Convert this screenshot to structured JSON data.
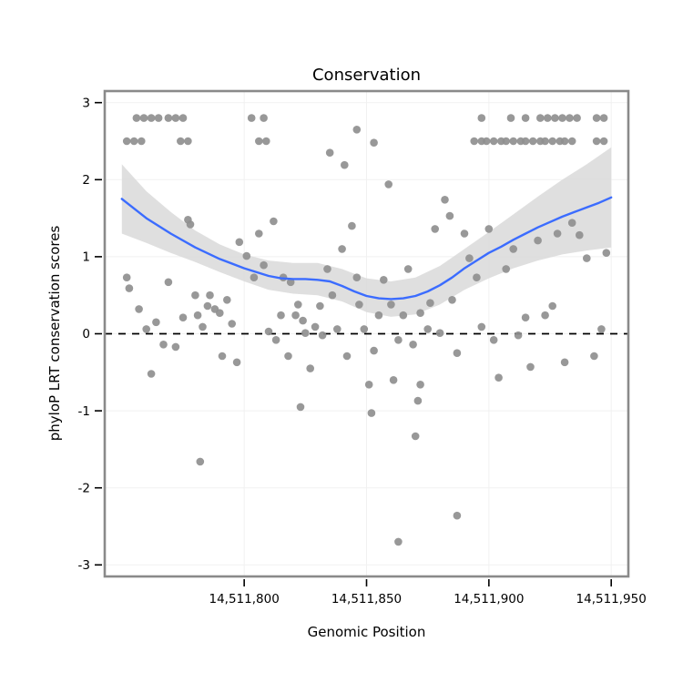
{
  "chart_data": {
    "type": "scatter",
    "title": "Conservation",
    "xlabel": "Genomic Position",
    "ylabel": "phyloP LRT conservation scores",
    "xlim": [
      14511743,
      14511957
    ],
    "ylim": [
      -3.15,
      3.15
    ],
    "grid": "faint",
    "legend_position": "none",
    "x_ticks": [
      {
        "value": 14511800,
        "label": "14,511,800"
      },
      {
        "value": 14511850,
        "label": "14,511,850"
      },
      {
        "value": 14511900,
        "label": "14,511,900"
      },
      {
        "value": 14511950,
        "label": "14,511,950"
      }
    ],
    "y_ticks": [
      {
        "value": -3,
        "label": "-3"
      },
      {
        "value": -2,
        "label": "-2"
      },
      {
        "value": -1,
        "label": "-1"
      },
      {
        "value": 0,
        "label": "0"
      },
      {
        "value": 1,
        "label": "1"
      },
      {
        "value": 2,
        "label": "2"
      },
      {
        "value": 3,
        "label": "3"
      }
    ],
    "reference_line_y": 0,
    "colors": {
      "point": "#8f8f8f",
      "smooth_line": "#3b6cff",
      "band": "#d9d9d9",
      "dashed_line": "#000000",
      "panel_border": "#8a8a8a",
      "grid": "#f1f1f1",
      "tick": "#000000"
    },
    "points": [
      [
        14511752,
        0.73
      ],
      [
        14511753,
        0.59
      ],
      [
        14511757,
        0.32
      ],
      [
        14511760,
        0.06
      ],
      [
        14511762,
        -0.52
      ],
      [
        14511764,
        0.15
      ],
      [
        14511767,
        -0.14
      ],
      [
        14511769,
        0.67
      ],
      [
        14511772,
        -0.17
      ],
      [
        14511775,
        0.21
      ],
      [
        14511777,
        1.48
      ],
      [
        14511778,
        1.42
      ],
      [
        14511780,
        0.5
      ],
      [
        14511781,
        0.24
      ],
      [
        14511783,
        0.09
      ],
      [
        14511785,
        0.36
      ],
      [
        14511786,
        0.5
      ],
      [
        14511788,
        0.32
      ],
      [
        14511790,
        0.27
      ],
      [
        14511791,
        -0.29
      ],
      [
        14511782,
        -1.66
      ],
      [
        14511793,
        0.44
      ],
      [
        14511795,
        0.13
      ],
      [
        14511797,
        -0.37
      ],
      [
        14511798,
        1.19
      ],
      [
        14511801,
        1.01
      ],
      [
        14511804,
        0.73
      ],
      [
        14511806,
        1.3
      ],
      [
        14511808,
        0.89
      ],
      [
        14511810,
        0.03
      ],
      [
        14511812,
        1.46
      ],
      [
        14511813,
        -0.08
      ],
      [
        14511815,
        0.24
      ],
      [
        14511816,
        0.73
      ],
      [
        14511818,
        -0.29
      ],
      [
        14511819,
        0.67
      ],
      [
        14511821,
        0.24
      ],
      [
        14511822,
        0.38
      ],
      [
        14511824,
        0.17
      ],
      [
        14511825,
        0.01
      ],
      [
        14511827,
        -0.45
      ],
      [
        14511823,
        -0.95
      ],
      [
        14511829,
        0.09
      ],
      [
        14511831,
        0.36
      ],
      [
        14511832,
        -0.02
      ],
      [
        14511834,
        0.84
      ],
      [
        14511836,
        0.5
      ],
      [
        14511838,
        0.06
      ],
      [
        14511840,
        1.1
      ],
      [
        14511842,
        -0.29
      ],
      [
        14511844,
        1.4
      ],
      [
        14511846,
        0.73
      ],
      [
        14511847,
        0.38
      ],
      [
        14511849,
        0.06
      ],
      [
        14511851,
        -0.66
      ],
      [
        14511853,
        -0.22
      ],
      [
        14511855,
        0.24
      ],
      [
        14511857,
        0.7
      ],
      [
        14511860,
        0.38
      ],
      [
        14511861,
        -0.6
      ],
      [
        14511863,
        -0.08
      ],
      [
        14511865,
        0.24
      ],
      [
        14511867,
        0.84
      ],
      [
        14511869,
        -0.14
      ],
      [
        14511871,
        -0.87
      ],
      [
        14511852,
        -1.03
      ],
      [
        14511863,
        -2.7
      ],
      [
        14511870,
        -1.33
      ],
      [
        14511887,
        -2.36
      ],
      [
        14511872,
        -0.66
      ],
      [
        14511872,
        0.27
      ],
      [
        14511875,
        0.06
      ],
      [
        14511876,
        0.4
      ],
      [
        14511878,
        1.36
      ],
      [
        14511880,
        0.01
      ],
      [
        14511882,
        1.74
      ],
      [
        14511884,
        1.53
      ],
      [
        14511885,
        0.44
      ],
      [
        14511887,
        -0.25
      ],
      [
        14511890,
        1.3
      ],
      [
        14511892,
        0.98
      ],
      [
        14511895,
        0.73
      ],
      [
        14511897,
        0.09
      ],
      [
        14511900,
        1.36
      ],
      [
        14511902,
        -0.08
      ],
      [
        14511904,
        -0.57
      ],
      [
        14511907,
        0.84
      ],
      [
        14511910,
        1.1
      ],
      [
        14511912,
        -0.02
      ],
      [
        14511915,
        0.21
      ],
      [
        14511917,
        -0.43
      ],
      [
        14511920,
        1.21
      ],
      [
        14511923,
        0.24
      ],
      [
        14511926,
        0.36
      ],
      [
        14511928,
        1.3
      ],
      [
        14511931,
        -0.37
      ],
      [
        14511934,
        1.44
      ],
      [
        14511937,
        1.28
      ],
      [
        14511940,
        0.98
      ],
      [
        14511943,
        -0.29
      ],
      [
        14511946,
        0.06
      ],
      [
        14511948,
        1.05
      ],
      [
        14511756,
        2.8
      ],
      [
        14511759,
        2.8
      ],
      [
        14511762,
        2.8
      ],
      [
        14511765,
        2.8
      ],
      [
        14511769,
        2.8
      ],
      [
        14511772,
        2.8
      ],
      [
        14511775,
        2.8
      ],
      [
        14511803,
        2.8
      ],
      [
        14511808,
        2.8
      ],
      [
        14511897,
        2.8
      ],
      [
        14511909,
        2.8
      ],
      [
        14511915,
        2.8
      ],
      [
        14511921,
        2.8
      ],
      [
        14511924,
        2.8
      ],
      [
        14511927,
        2.8
      ],
      [
        14511930,
        2.8
      ],
      [
        14511933,
        2.8
      ],
      [
        14511936,
        2.8
      ],
      [
        14511944,
        2.8
      ],
      [
        14511947,
        2.8
      ],
      [
        14511752,
        2.5
      ],
      [
        14511755,
        2.5
      ],
      [
        14511758,
        2.5
      ],
      [
        14511774,
        2.5
      ],
      [
        14511777,
        2.5
      ],
      [
        14511806,
        2.5
      ],
      [
        14511809,
        2.5
      ],
      [
        14511894,
        2.5
      ],
      [
        14511897,
        2.5
      ],
      [
        14511899,
        2.5
      ],
      [
        14511902,
        2.5
      ],
      [
        14511905,
        2.5
      ],
      [
        14511907,
        2.5
      ],
      [
        14511910,
        2.5
      ],
      [
        14511913,
        2.5
      ],
      [
        14511915,
        2.5
      ],
      [
        14511918,
        2.5
      ],
      [
        14511921,
        2.5
      ],
      [
        14511923,
        2.5
      ],
      [
        14511926,
        2.5
      ],
      [
        14511929,
        2.5
      ],
      [
        14511931,
        2.5
      ],
      [
        14511934,
        2.5
      ],
      [
        14511944,
        2.5
      ],
      [
        14511947,
        2.5
      ],
      [
        14511846,
        2.65
      ],
      [
        14511835,
        2.35
      ],
      [
        14511853,
        2.48
      ],
      [
        14511841,
        2.19
      ],
      [
        14511859,
        1.94
      ]
    ],
    "smooth": [
      [
        14511750,
        1.75
      ],
      [
        14511760,
        1.5
      ],
      [
        14511770,
        1.3
      ],
      [
        14511780,
        1.12
      ],
      [
        14511790,
        0.97
      ],
      [
        14511800,
        0.85
      ],
      [
        14511810,
        0.75
      ],
      [
        14511815,
        0.72
      ],
      [
        14511820,
        0.71
      ],
      [
        14511825,
        0.71
      ],
      [
        14511830,
        0.7
      ],
      [
        14511835,
        0.68
      ],
      [
        14511840,
        0.62
      ],
      [
        14511845,
        0.55
      ],
      [
        14511850,
        0.49
      ],
      [
        14511855,
        0.46
      ],
      [
        14511860,
        0.45
      ],
      [
        14511865,
        0.46
      ],
      [
        14511870,
        0.49
      ],
      [
        14511875,
        0.55
      ],
      [
        14511880,
        0.63
      ],
      [
        14511885,
        0.73
      ],
      [
        14511890,
        0.85
      ],
      [
        14511895,
        0.95
      ],
      [
        14511900,
        1.05
      ],
      [
        14511905,
        1.13
      ],
      [
        14511910,
        1.22
      ],
      [
        14511915,
        1.3
      ],
      [
        14511920,
        1.38
      ],
      [
        14511925,
        1.45
      ],
      [
        14511930,
        1.52
      ],
      [
        14511935,
        1.58
      ],
      [
        14511940,
        1.64
      ],
      [
        14511945,
        1.7
      ],
      [
        14511950,
        1.77
      ]
    ],
    "band": [
      [
        14511750,
        1.3,
        2.2
      ],
      [
        14511760,
        1.18,
        1.85
      ],
      [
        14511770,
        1.05,
        1.58
      ],
      [
        14511780,
        0.93,
        1.34
      ],
      [
        14511790,
        0.8,
        1.16
      ],
      [
        14511800,
        0.68,
        1.03
      ],
      [
        14511810,
        0.57,
        0.95
      ],
      [
        14511820,
        0.52,
        0.92
      ],
      [
        14511830,
        0.5,
        0.92
      ],
      [
        14511840,
        0.42,
        0.84
      ],
      [
        14511850,
        0.28,
        0.72
      ],
      [
        14511860,
        0.22,
        0.68
      ],
      [
        14511870,
        0.25,
        0.73
      ],
      [
        14511880,
        0.38,
        0.88
      ],
      [
        14511890,
        0.57,
        1.1
      ],
      [
        14511900,
        0.72,
        1.32
      ],
      [
        14511910,
        0.85,
        1.55
      ],
      [
        14511920,
        0.95,
        1.78
      ],
      [
        14511930,
        1.03,
        2.0
      ],
      [
        14511940,
        1.08,
        2.2
      ],
      [
        14511950,
        1.12,
        2.42
      ]
    ]
  }
}
